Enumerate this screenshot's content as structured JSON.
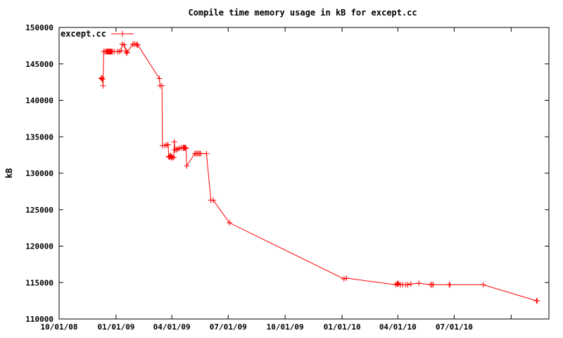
{
  "chart_data": {
    "type": "line",
    "title": "Compile time memory usage in kB for except.cc",
    "xlabel": "",
    "ylabel": "kB",
    "xlim": [
      "2008-10-01",
      "2010-12-01"
    ],
    "ylim": [
      110000,
      150000
    ],
    "y_ticks": [
      110000,
      115000,
      120000,
      125000,
      130000,
      135000,
      140000,
      145000,
      150000
    ],
    "x_ticks": [
      {
        "date": "2008-10-01",
        "label": "10/01/08"
      },
      {
        "date": "2009-01-01",
        "label": "01/01/09"
      },
      {
        "date": "2009-04-01",
        "label": "04/01/09"
      },
      {
        "date": "2009-07-01",
        "label": "07/01/09"
      },
      {
        "date": "2009-10-01",
        "label": "10/01/09"
      },
      {
        "date": "2010-01-01",
        "label": "01/01/10"
      },
      {
        "date": "2010-04-01",
        "label": "04/01/10"
      },
      {
        "date": "2010-07-01",
        "label": "07/01/10"
      }
    ],
    "grid": false,
    "legend_position": "top-left",
    "series": [
      {
        "name": "except.cc",
        "color": "#ff0000",
        "marker": "plus",
        "points": [
          [
            "2008-12-08",
            143000
          ],
          [
            "2008-12-09",
            143100
          ],
          [
            "2008-12-10",
            142900
          ],
          [
            "2008-12-11",
            142000
          ],
          [
            "2008-12-12",
            146700
          ],
          [
            "2008-12-14",
            146700
          ],
          [
            "2008-12-16",
            146700
          ],
          [
            "2008-12-17",
            146700
          ],
          [
            "2008-12-18",
            146700
          ],
          [
            "2008-12-19",
            146700
          ],
          [
            "2008-12-20",
            146700
          ],
          [
            "2008-12-21",
            146700
          ],
          [
            "2008-12-22",
            146700
          ],
          [
            "2008-12-23",
            146700
          ],
          [
            "2008-12-24",
            146700
          ],
          [
            "2008-12-25",
            146700
          ],
          [
            "2008-12-26",
            146700
          ],
          [
            "2008-12-29",
            146700
          ],
          [
            "2009-01-03",
            146700
          ],
          [
            "2009-01-06",
            146700
          ],
          [
            "2009-01-09",
            146800
          ],
          [
            "2009-01-11",
            147700
          ],
          [
            "2009-01-14",
            147600
          ],
          [
            "2009-01-17",
            146800
          ],
          [
            "2009-01-18",
            146500
          ],
          [
            "2009-01-19",
            146600
          ],
          [
            "2009-01-28",
            147700
          ],
          [
            "2009-01-30",
            147700
          ],
          [
            "2009-02-02",
            147700
          ],
          [
            "2009-02-04",
            147600
          ],
          [
            "2009-02-05",
            147600
          ],
          [
            "2009-03-12",
            143000
          ],
          [
            "2009-03-13",
            142000
          ],
          [
            "2009-03-16",
            142000
          ],
          [
            "2009-03-17",
            133800
          ],
          [
            "2009-03-21",
            133800
          ],
          [
            "2009-03-24",
            133900
          ],
          [
            "2009-03-26",
            133900
          ],
          [
            "2009-03-27",
            132300
          ],
          [
            "2009-03-28",
            132200
          ],
          [
            "2009-03-29",
            132300
          ],
          [
            "2009-03-30",
            132400
          ],
          [
            "2009-03-31",
            132200
          ],
          [
            "2009-04-01",
            132300
          ],
          [
            "2009-04-02",
            132100
          ],
          [
            "2009-04-04",
            132200
          ],
          [
            "2009-04-05",
            134300
          ],
          [
            "2009-04-06",
            133200
          ],
          [
            "2009-04-08",
            133200
          ],
          [
            "2009-04-10",
            133300
          ],
          [
            "2009-04-13",
            133400
          ],
          [
            "2009-04-16",
            133500
          ],
          [
            "2009-04-19",
            133500
          ],
          [
            "2009-04-20",
            133500
          ],
          [
            "2009-04-21",
            133500
          ],
          [
            "2009-04-22",
            133500
          ],
          [
            "2009-04-23",
            133500
          ],
          [
            "2009-04-24",
            133400
          ],
          [
            "2009-04-25",
            131000
          ],
          [
            "2009-05-08",
            132700
          ],
          [
            "2009-05-10",
            132700
          ],
          [
            "2009-05-12",
            132700
          ],
          [
            "2009-05-14",
            132700
          ],
          [
            "2009-05-16",
            132700
          ],
          [
            "2009-05-18",
            132700
          ],
          [
            "2009-05-27",
            132700
          ],
          [
            "2009-06-03",
            126300
          ],
          [
            "2009-06-07",
            126300
          ],
          [
            "2009-07-03",
            123200
          ],
          [
            "2010-01-04",
            115500
          ],
          [
            "2010-01-08",
            115600
          ],
          [
            "2010-03-29",
            114700
          ],
          [
            "2010-03-31",
            114800
          ],
          [
            "2010-04-01",
            114900
          ],
          [
            "2010-04-02",
            114800
          ],
          [
            "2010-04-05",
            114700
          ],
          [
            "2010-04-09",
            114700
          ],
          [
            "2010-04-14",
            114700
          ],
          [
            "2010-04-17",
            114700
          ],
          [
            "2010-04-22",
            114800
          ],
          [
            "2010-05-05",
            114900
          ],
          [
            "2010-05-24",
            114700
          ],
          [
            "2010-05-26",
            114700
          ],
          [
            "2010-05-28",
            114700
          ],
          [
            "2010-06-23",
            114700
          ],
          [
            "2010-06-24",
            114700
          ],
          [
            "2010-08-17",
            114700
          ],
          [
            "2010-11-11",
            112500
          ],
          [
            "2010-11-12",
            112500
          ]
        ]
      }
    ]
  }
}
